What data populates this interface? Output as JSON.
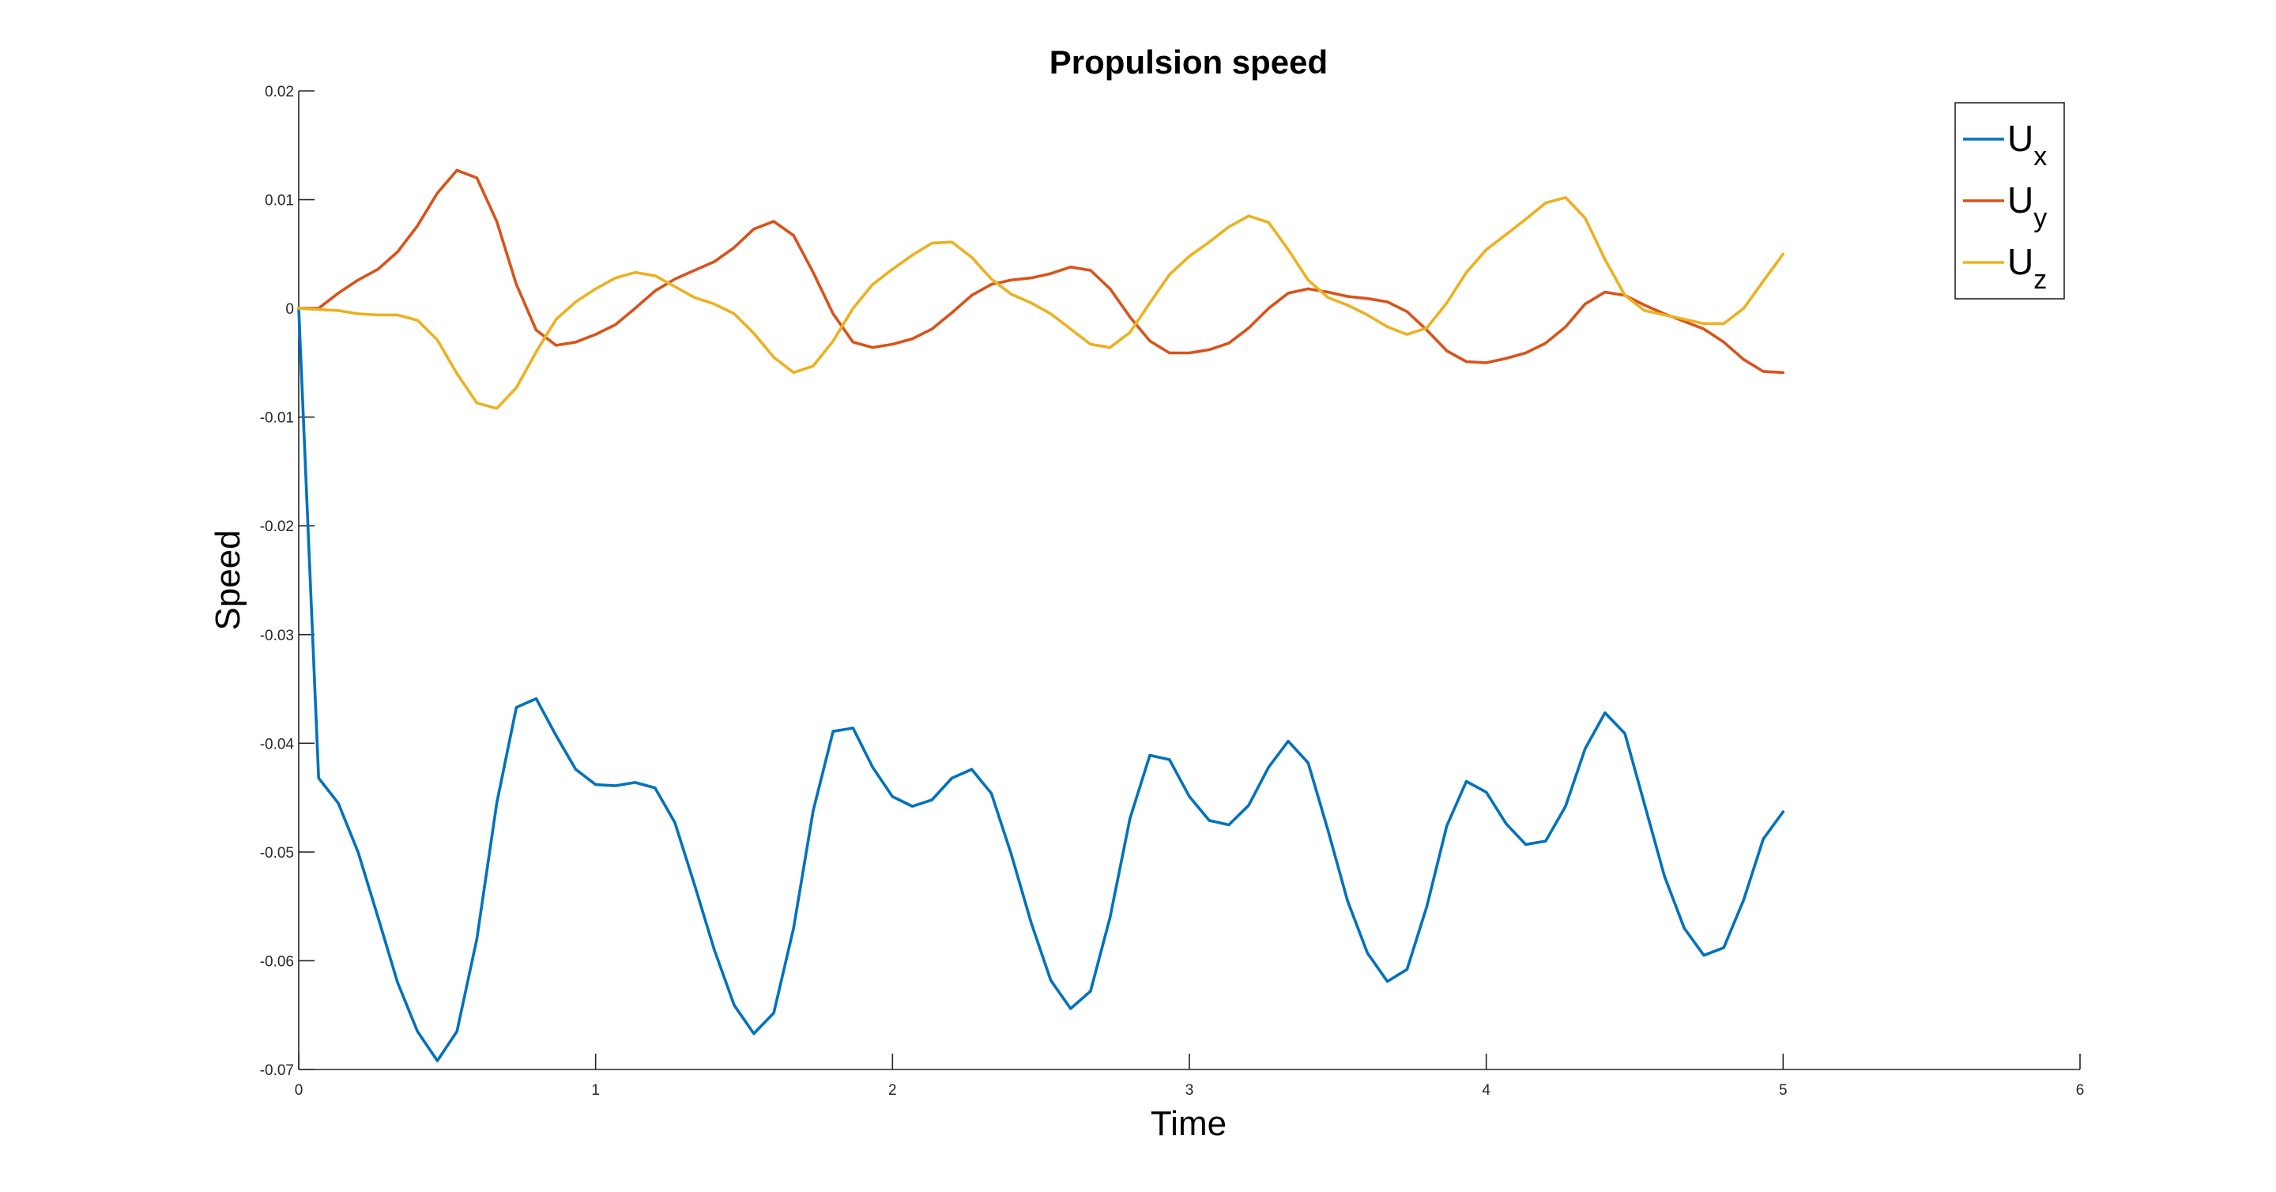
{
  "chart_data": {
    "type": "line",
    "title": "Propulsion speed",
    "xlabel": "Time",
    "ylabel": "Speed",
    "xlim": [
      0,
      6
    ],
    "ylim": [
      -0.07,
      0.02
    ],
    "xticks": [
      0,
      1,
      2,
      3,
      4,
      5,
      6
    ],
    "xtick_labels": [
      "0",
      "1",
      "2",
      "3",
      "4",
      "5",
      "6"
    ],
    "yticks": [
      0.02,
      0.01,
      0,
      -0.01,
      -0.02,
      -0.03,
      -0.04,
      -0.05,
      -0.06,
      -0.07
    ],
    "ytick_labels": [
      "0.02",
      "0.01",
      "0",
      "-0.01",
      "-0.02",
      "-0.03",
      "-0.04",
      "-0.05",
      "-0.06",
      "-0.07"
    ],
    "grid": false,
    "legend_position": "top-right",
    "series": [
      {
        "name": "U",
        "subscript": "x",
        "color": "#0072BD",
        "x": [
          0,
          0.067,
          0.133,
          0.2,
          0.267,
          0.333,
          0.4,
          0.467,
          0.533,
          0.6,
          0.667,
          0.733,
          0.8,
          0.867,
          0.933,
          1.0,
          1.067,
          1.133,
          1.2,
          1.267,
          1.333,
          1.4,
          1.467,
          1.533,
          1.6,
          1.667,
          1.733,
          1.8,
          1.867,
          1.933,
          2.0,
          2.067,
          2.133,
          2.2,
          2.267,
          2.333,
          2.4,
          2.467,
          2.533,
          2.6,
          2.667,
          2.733,
          2.8,
          2.867,
          2.933,
          3.0,
          3.067,
          3.133,
          3.2,
          3.267,
          3.333,
          3.4,
          3.467,
          3.533,
          3.6,
          3.667,
          3.733,
          3.8,
          3.867,
          3.933,
          4.0,
          4.067,
          4.133,
          4.2,
          4.267,
          4.333,
          4.4,
          4.467,
          4.533,
          4.6,
          4.667,
          4.733,
          4.8,
          4.867,
          4.933,
          5.0
        ],
        "y": [
          0,
          -0.0432,
          -0.0455,
          -0.05,
          -0.056,
          -0.062,
          -0.0665,
          -0.0692,
          -0.0665,
          -0.058,
          -0.0455,
          -0.0367,
          -0.0359,
          -0.0393,
          -0.0424,
          -0.0438,
          -0.0439,
          -0.0436,
          -0.0441,
          -0.0473,
          -0.053,
          -0.059,
          -0.0641,
          -0.0667,
          -0.0648,
          -0.057,
          -0.0462,
          -0.0389,
          -0.0386,
          -0.0422,
          -0.0449,
          -0.0458,
          -0.0452,
          -0.0432,
          -0.0424,
          -0.0446,
          -0.0502,
          -0.0565,
          -0.0618,
          -0.0644,
          -0.0628,
          -0.056,
          -0.0469,
          -0.0411,
          -0.0415,
          -0.0449,
          -0.0471,
          -0.0475,
          -0.0457,
          -0.0422,
          -0.0398,
          -0.0418,
          -0.048,
          -0.0545,
          -0.0593,
          -0.0619,
          -0.0608,
          -0.055,
          -0.0476,
          -0.0435,
          -0.0445,
          -0.0474,
          -0.0493,
          -0.049,
          -0.0458,
          -0.0405,
          -0.0372,
          -0.0391,
          -0.0456,
          -0.0522,
          -0.057,
          -0.0595,
          -0.0588,
          -0.0544,
          -0.0488,
          -0.0463
        ]
      },
      {
        "name": "U",
        "subscript": "y",
        "color": "#D95319",
        "x": [
          0,
          0.067,
          0.133,
          0.2,
          0.267,
          0.333,
          0.4,
          0.467,
          0.533,
          0.6,
          0.667,
          0.733,
          0.8,
          0.867,
          0.933,
          1.0,
          1.067,
          1.133,
          1.2,
          1.267,
          1.333,
          1.4,
          1.467,
          1.533,
          1.6,
          1.667,
          1.733,
          1.8,
          1.867,
          1.933,
          2.0,
          2.067,
          2.133,
          2.2,
          2.267,
          2.333,
          2.4,
          2.467,
          2.533,
          2.6,
          2.667,
          2.733,
          2.8,
          2.867,
          2.933,
          3.0,
          3.067,
          3.133,
          3.2,
          3.267,
          3.333,
          3.4,
          3.467,
          3.533,
          3.6,
          3.667,
          3.733,
          3.8,
          3.867,
          3.933,
          4.0,
          4.067,
          4.133,
          4.2,
          4.267,
          4.333,
          4.4,
          4.467,
          4.533,
          4.6,
          4.667,
          4.733,
          4.8,
          4.867,
          4.933,
          5.0
        ],
        "y": [
          0,
          0,
          0.0014,
          0.0026,
          0.0036,
          0.0052,
          0.0076,
          0.0106,
          0.0127,
          0.012,
          0.008,
          0.0022,
          -0.002,
          -0.0034,
          -0.0031,
          -0.0024,
          -0.0015,
          0,
          0.0016,
          0.0027,
          0.0035,
          0.0043,
          0.0056,
          0.0073,
          0.008,
          0.0067,
          0.0033,
          -0.0005,
          -0.0031,
          -0.0036,
          -0.0033,
          -0.0028,
          -0.0019,
          -0.0004,
          0.0012,
          0.0022,
          0.0026,
          0.0028,
          0.0032,
          0.0038,
          0.0035,
          0.0018,
          -0.0008,
          -0.003,
          -0.0041,
          -0.0041,
          -0.0038,
          -0.0032,
          -0.0018,
          0,
          0.0014,
          0.0018,
          0.0015,
          0.0011,
          0.0009,
          0.0006,
          -0.0003,
          -0.002,
          -0.0039,
          -0.0049,
          -0.005,
          -0.0046,
          -0.0041,
          -0.0032,
          -0.0017,
          0.0004,
          0.0015,
          0.0012,
          0.0003,
          -0.0005,
          -0.0012,
          -0.0019,
          -0.0031,
          -0.0047,
          -0.0058,
          -0.0059
        ]
      },
      {
        "name": "U",
        "subscript": "z",
        "color": "#EDB120",
        "x": [
          0,
          0.067,
          0.133,
          0.2,
          0.267,
          0.333,
          0.4,
          0.467,
          0.533,
          0.6,
          0.667,
          0.733,
          0.8,
          0.867,
          0.933,
          1.0,
          1.067,
          1.133,
          1.2,
          1.267,
          1.333,
          1.4,
          1.467,
          1.533,
          1.6,
          1.667,
          1.733,
          1.8,
          1.867,
          1.933,
          2.0,
          2.067,
          2.133,
          2.2,
          2.267,
          2.333,
          2.4,
          2.467,
          2.533,
          2.6,
          2.667,
          2.733,
          2.8,
          2.867,
          2.933,
          3.0,
          3.067,
          3.133,
          3.2,
          3.267,
          3.333,
          3.4,
          3.467,
          3.533,
          3.6,
          3.667,
          3.733,
          3.8,
          3.867,
          3.933,
          4.0,
          4.067,
          4.133,
          4.2,
          4.267,
          4.333,
          4.4,
          4.467,
          4.533,
          4.6,
          4.667,
          4.733,
          4.8,
          4.867,
          4.933,
          5.0
        ],
        "y": [
          0,
          -0.0001,
          -0.0002,
          -0.0005,
          -0.0006,
          -0.0006,
          -0.0011,
          -0.0029,
          -0.006,
          -0.0087,
          -0.0092,
          -0.0073,
          -0.004,
          -0.001,
          0.0006,
          0.0018,
          0.0028,
          0.0033,
          0.003,
          0.002,
          0.001,
          0.0004,
          -0.0005,
          -0.0023,
          -0.0045,
          -0.0059,
          -0.0053,
          -0.003,
          0,
          0.0022,
          0.0036,
          0.0049,
          0.006,
          0.0061,
          0.0047,
          0.0027,
          0.0013,
          0.0005,
          -0.0005,
          -0.0019,
          -0.0033,
          -0.0036,
          -0.0022,
          0.0005,
          0.0031,
          0.0048,
          0.0061,
          0.0075,
          0.0085,
          0.0079,
          0.0054,
          0.0026,
          0.001,
          0.0003,
          -0.0006,
          -0.0017,
          -0.0024,
          -0.0018,
          0.0005,
          0.0033,
          0.0054,
          0.0068,
          0.0082,
          0.0097,
          0.0102,
          0.0083,
          0.0045,
          0.0012,
          -0.0002,
          -0.0006,
          -0.001,
          -0.0014,
          -0.0014,
          0,
          0.0025,
          0.005
        ]
      }
    ]
  }
}
